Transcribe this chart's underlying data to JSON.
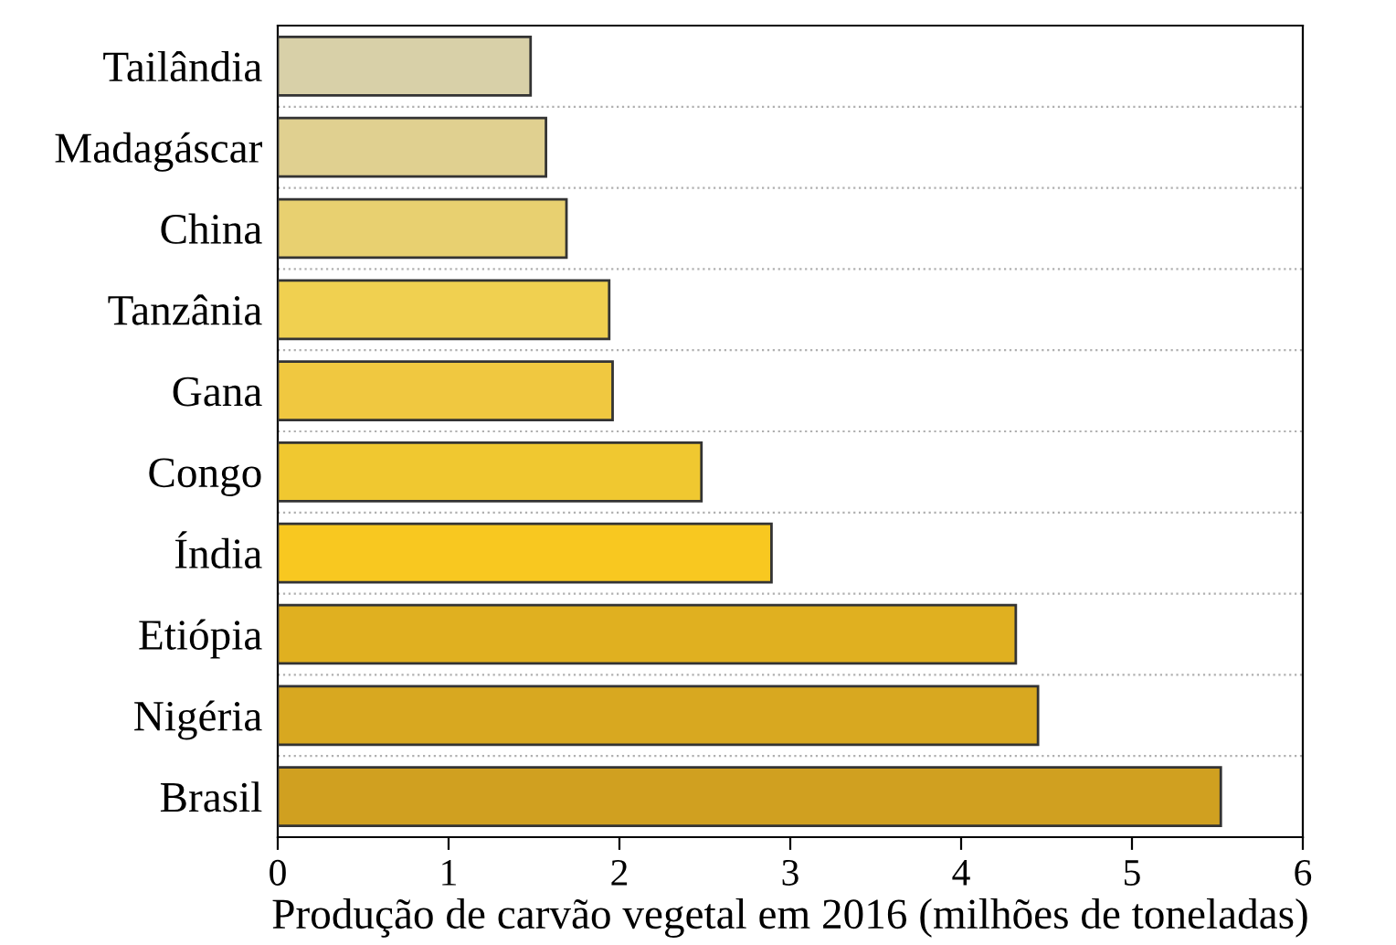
{
  "chart_data": {
    "type": "bar",
    "orientation": "horizontal",
    "xlabel": "Produção de carvão vegetal em 2016 (milhões de toneladas)",
    "categories": [
      "Tailândia",
      "Madagáscar",
      "China",
      "Tanzânia",
      "Gana",
      "Congo",
      "Índia",
      "Etiópia",
      "Nigéria",
      "Brasil"
    ],
    "values": [
      1.48,
      1.57,
      1.69,
      1.94,
      1.96,
      2.48,
      2.89,
      4.32,
      4.45,
      5.52
    ],
    "colors": [
      "#d8d0a8",
      "#e0d090",
      "#e8d070",
      "#f0d050",
      "#f0c840",
      "#f0c830",
      "#f8c820",
      "#e0b020",
      "#d8a820",
      "#d0a020"
    ],
    "xlim": [
      0,
      6
    ],
    "xticks": [
      0,
      1,
      2,
      3,
      4,
      5,
      6
    ],
    "grid": "y"
  }
}
